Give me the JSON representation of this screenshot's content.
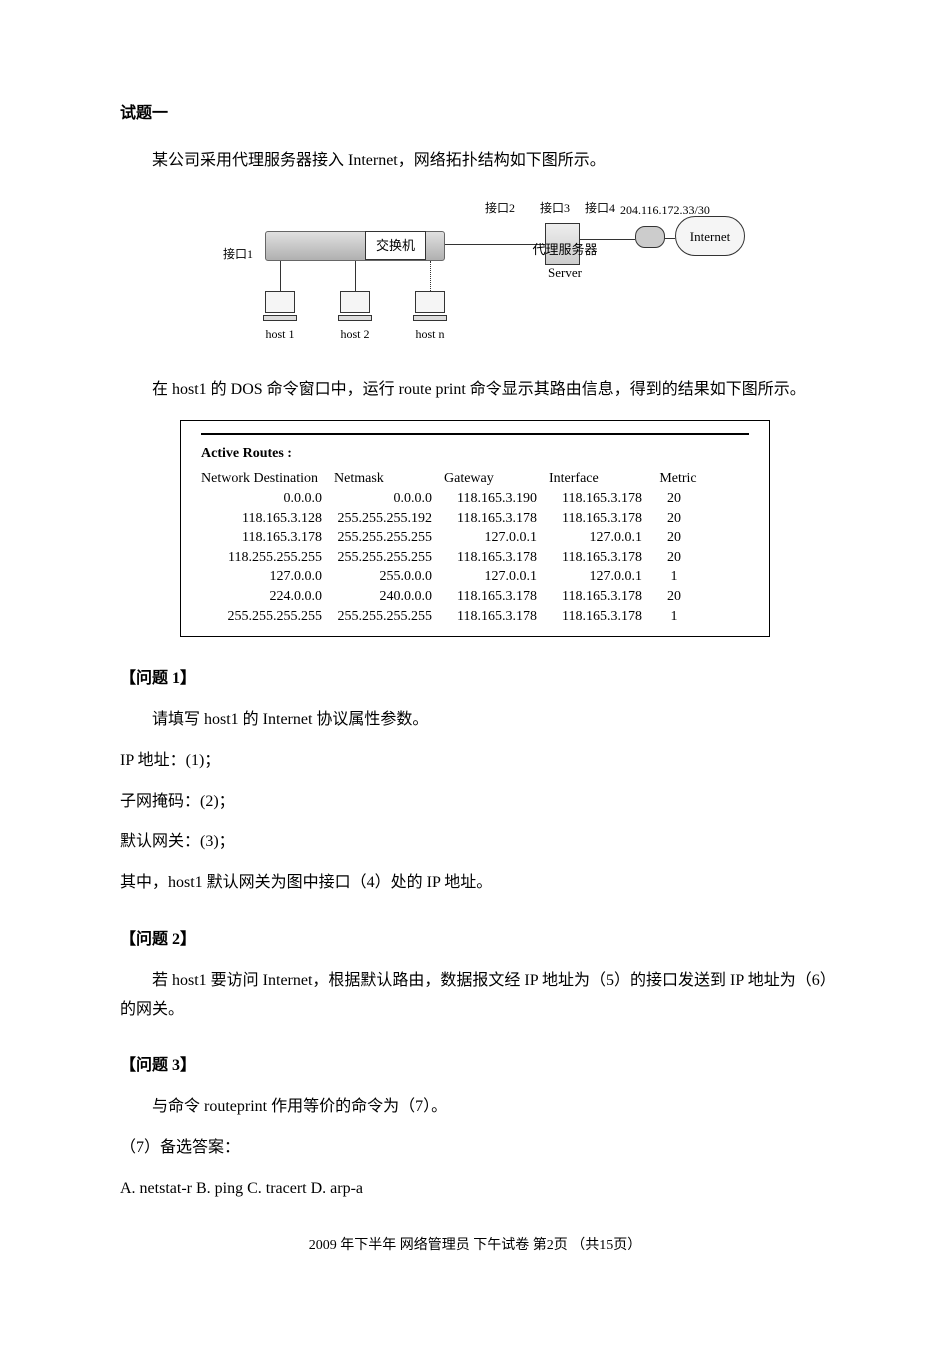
{
  "title": "试题一",
  "intro": "某公司采用代理服务器接入 Internet，网络拓扑结构如下图所示。",
  "diagram": {
    "interface1": "接口1",
    "interface2": "接口2",
    "interface3": "接口3",
    "interface4": "接口4",
    "ip_label": "204.116.172.33/30",
    "switch_label": "交换机",
    "server_label": "代理服务器",
    "server_label2": "Server",
    "internet_label": "Internet",
    "host1": "host 1",
    "host2": "host 2",
    "hostn": "host n"
  },
  "second_para": "在 host1 的 DOS 命令窗口中，运行 route print 命令显示其路由信息，得到的结果如下图所示。",
  "route_table": {
    "title": "Active Routes :",
    "headers": [
      "Network Destination",
      "Netmask",
      "Gateway",
      "Interface",
      "Metric"
    ],
    "rows": [
      [
        "0.0.0.0",
        "0.0.0.0",
        "118.165.3.190",
        "118.165.3.178",
        "20"
      ],
      [
        "118.165.3.128",
        "255.255.255.192",
        "118.165.3.178",
        "118.165.3.178",
        "20"
      ],
      [
        "118.165.3.178",
        "255.255.255.255",
        "127.0.0.1",
        "127.0.0.1",
        "20"
      ],
      [
        "118.255.255.255",
        "255.255.255.255",
        "118.165.3.178",
        "118.165.3.178",
        "20"
      ],
      [
        "127.0.0.0",
        "255.0.0.0",
        "127.0.0.1",
        "127.0.0.1",
        "1"
      ],
      [
        "224.0.0.0",
        "240.0.0.0",
        "118.165.3.178",
        "118.165.3.178",
        "20"
      ],
      [
        "255.255.255.255",
        "255.255.255.255",
        "118.165.3.178",
        "118.165.3.178",
        "1"
      ]
    ]
  },
  "q1": {
    "heading": "【问题 1】",
    "intro": "请填写 host1 的 Internet 协议属性参数。",
    "line1": "IP 地址：(1)；",
    "line2": "子网掩码：(2)；",
    "line3": "默认网关：(3)；",
    "line4": "其中，host1 默认网关为图中接口（4）处的 IP 地址。"
  },
  "q2": {
    "heading": "【问题 2】",
    "content": "若 host1 要访问 Internet，根据默认路由，数据报文经 IP 地址为（5）的接口发送到 IP 地址为（6）的网关。"
  },
  "q3": {
    "heading": "【问题 3】",
    "intro": "与命令 routeprint 作用等价的命令为（7）。",
    "note": "（7）备选答案：",
    "options": "A. netstat-r  B. ping  C. tracert  D. arp-a"
  },
  "footer": "2009 年下半年  网络管理员  下午试卷  第2页  （共15页）"
}
